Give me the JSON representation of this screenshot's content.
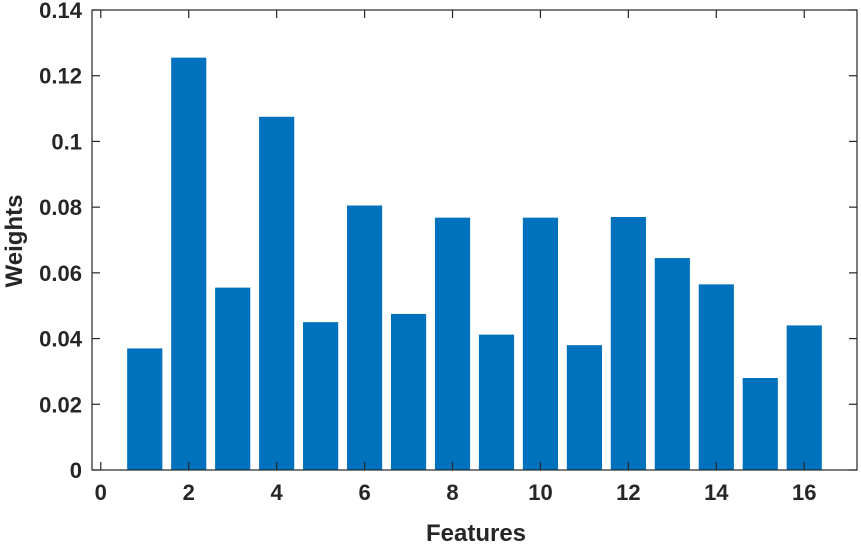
{
  "chart_data": {
    "type": "bar",
    "x": [
      1,
      2,
      3,
      4,
      5,
      6,
      7,
      8,
      9,
      10,
      11,
      12,
      13,
      14,
      15,
      16
    ],
    "values": [
      0.037,
      0.1255,
      0.0555,
      0.1075,
      0.045,
      0.0805,
      0.0475,
      0.0768,
      0.0412,
      0.0768,
      0.038,
      0.077,
      0.0645,
      0.0565,
      0.028,
      0.044
    ],
    "xlabel": "Features",
    "ylabel": "Weights",
    "xlim": [
      -0.2,
      17.2
    ],
    "ylim": [
      0,
      0.14
    ],
    "xticks": [
      "0",
      "2",
      "4",
      "6",
      "8",
      "10",
      "12",
      "14",
      "16"
    ],
    "xtick_values": [
      0,
      2,
      4,
      6,
      8,
      10,
      12,
      14,
      16
    ],
    "yticks": [
      "0",
      "0.02",
      "0.04",
      "0.06",
      "0.08",
      "0.1",
      "0.12",
      "0.14"
    ],
    "ytick_values": [
      0,
      0.02,
      0.04,
      0.06,
      0.08,
      0.1,
      0.12,
      0.14
    ],
    "bar_color": "#0072BD",
    "axis_color": "#262626",
    "grid": false,
    "legend": "none"
  }
}
